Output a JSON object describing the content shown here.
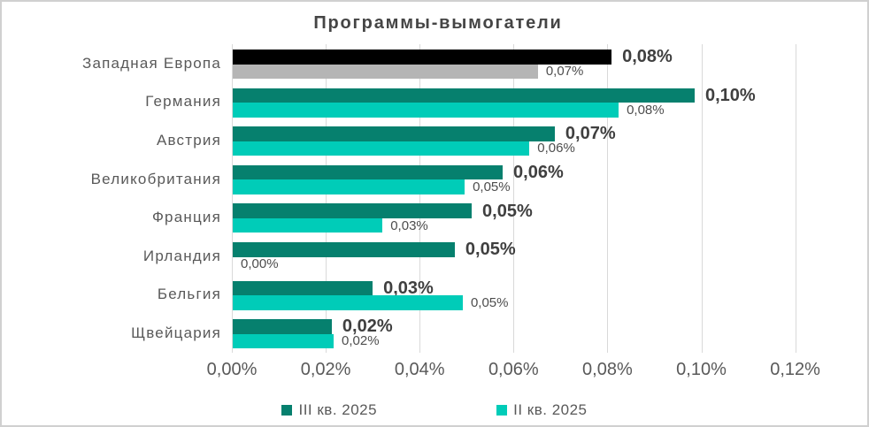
{
  "chart_data": {
    "type": "bar",
    "orientation": "horizontal",
    "title": "Программы-вымогатели",
    "categories": [
      "Западная Европа",
      "Германия",
      "Австрия",
      "Великобритания",
      "Франция",
      "Ирландия",
      "Бельгия",
      "Щвейцария"
    ],
    "series": [
      {
        "name": "III кв. 2025",
        "values": [
          0.0807,
          0.0984,
          0.0686,
          0.0575,
          0.0509,
          0.0473,
          0.0298,
          0.0211
        ],
        "labels": [
          "0,08%",
          "0,10%",
          "0,07%",
          "0,06%",
          "0,05%",
          "0,05%",
          "0,03%",
          "0,02%"
        ],
        "colors": [
          "#000000",
          "#06806E",
          "#06806E",
          "#06806E",
          "#06806E",
          "#06806E",
          "#06806E",
          "#06806E"
        ],
        "legend_color": "#06806E"
      },
      {
        "name": "II кв. 2025",
        "values": [
          0.065,
          0.0822,
          0.0632,
          0.0494,
          0.0319,
          0.0,
          0.049,
          0.0215
        ],
        "labels": [
          "0,07%",
          "0,08%",
          "0,06%",
          "0,05%",
          "0,03%",
          "0,00%",
          "0,05%",
          "0,02%"
        ],
        "colors": [
          "#B5B5B5",
          "#00CCB8",
          "#00CCB8",
          "#00CCB8",
          "#00CCB8",
          "#00CCB8",
          "#00CCB8",
          "#00CCB8"
        ],
        "legend_color": "#00CCB8"
      }
    ],
    "x_axis": {
      "tick_labels": [
        "0,00%",
        "0,02%",
        "0,04%",
        "0,06%",
        "0,08%",
        "0,10%",
        "0,12%"
      ],
      "min": 0,
      "max": 0.12,
      "step": 0.02,
      "grid": true
    },
    "legend_position": "bottom"
  }
}
